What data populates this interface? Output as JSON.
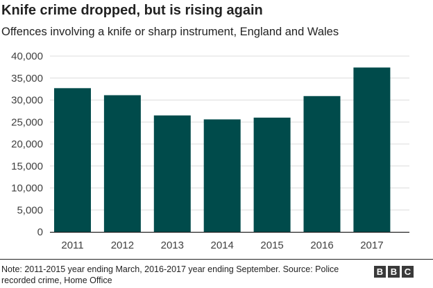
{
  "header": {
    "title": "Knife crime dropped, but is rising again",
    "subtitle": "Offences involving a knife or sharp instrument, England and Wales"
  },
  "footer": {
    "note": "Note: 2011-2015 year ending March, 2016-2017 year ending September. Source: Police recorded crime, Home Office",
    "logo": [
      "B",
      "B",
      "C"
    ]
  },
  "chart_data": {
    "type": "bar",
    "categories": [
      "2011",
      "2012",
      "2013",
      "2014",
      "2015",
      "2016",
      "2017"
    ],
    "values": [
      32700,
      31100,
      26500,
      25600,
      26000,
      30900,
      37400
    ],
    "ylim": [
      0,
      40000
    ],
    "yticks": [
      0,
      5000,
      10000,
      15000,
      20000,
      25000,
      30000,
      35000,
      40000
    ],
    "ytick_labels": [
      "0",
      "5,000",
      "10,000",
      "15,000",
      "20,000",
      "25,000",
      "30,000",
      "35,000",
      "40,000"
    ],
    "grid": true,
    "bar_color": "#004b4b",
    "grid_color": "#dcdcdc",
    "axis_color": "#222222"
  }
}
